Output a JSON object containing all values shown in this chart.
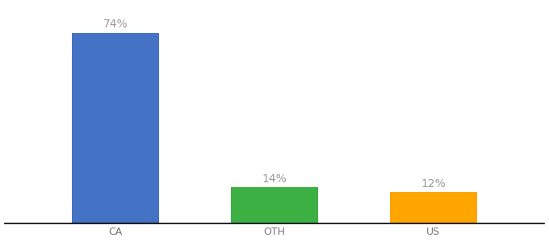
{
  "categories": [
    "CA",
    "OTH",
    "US"
  ],
  "values": [
    74,
    14,
    12
  ],
  "bar_colors": [
    "#4472C4",
    "#3CB043",
    "#FFA500"
  ],
  "label_color": "#999999",
  "label_fontsize": 10,
  "tick_fontsize": 9,
  "tick_color": "#777777",
  "ylim": [
    0,
    85
  ],
  "background_color": "#ffffff",
  "bar_width": 0.55,
  "x_positions": [
    1,
    2,
    3
  ],
  "xlim": [
    0.3,
    3.7
  ]
}
